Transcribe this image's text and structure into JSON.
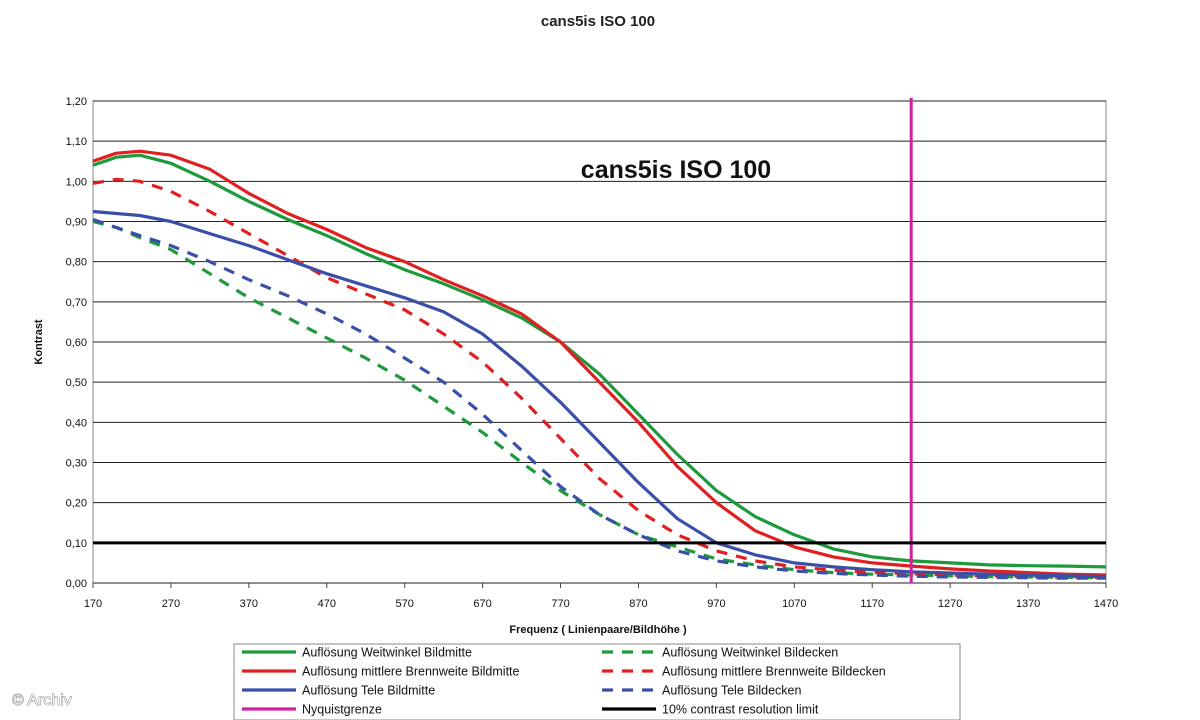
{
  "chart_data": {
    "type": "line",
    "title": "cans5is ISO 100",
    "inner_title": "cans5is ISO 100",
    "xlabel": "Frequenz ( Linienpaare/Bildhöhe )",
    "ylabel": "Kontrast",
    "xlim": [
      170,
      1470
    ],
    "ylim": [
      0,
      1.2
    ],
    "x_ticks": [
      "170",
      "270",
      "370",
      "470",
      "570",
      "670",
      "770",
      "870",
      "970",
      "1070",
      "1170",
      "1270",
      "1370",
      "1470"
    ],
    "y_ticks": [
      "0,00",
      "0,10",
      "0,20",
      "0,30",
      "0,40",
      "0,50",
      "0,60",
      "0,70",
      "0,80",
      "0,90",
      "1,00",
      "1,10",
      "1,20"
    ],
    "grid": true,
    "legend_position": "bottom",
    "series": [
      {
        "name": "Auflösung Weitwinkel Bildmitte",
        "color": "#1e9a3c",
        "dash": false,
        "x": [
          170,
          200,
          230,
          270,
          320,
          370,
          420,
          470,
          520,
          570,
          620,
          670,
          720,
          770,
          820,
          870,
          920,
          970,
          1020,
          1070,
          1120,
          1170,
          1220,
          1270,
          1320,
          1370,
          1420,
          1470
        ],
        "y": [
          1.04,
          1.06,
          1.065,
          1.045,
          1.0,
          0.95,
          0.905,
          0.865,
          0.82,
          0.78,
          0.745,
          0.705,
          0.66,
          0.6,
          0.52,
          0.42,
          0.32,
          0.23,
          0.165,
          0.12,
          0.085,
          0.065,
          0.055,
          0.05,
          0.045,
          0.043,
          0.042,
          0.04
        ]
      },
      {
        "name": "Auflösung Weitwinkel Bildecken",
        "color": "#1e9a3c",
        "dash": true,
        "x": [
          170,
          200,
          230,
          270,
          320,
          370,
          420,
          470,
          520,
          570,
          620,
          670,
          720,
          770,
          820,
          870,
          920,
          970,
          1020,
          1070,
          1120,
          1170,
          1220,
          1270,
          1320,
          1370,
          1420,
          1470
        ],
        "y": [
          0.9,
          0.885,
          0.86,
          0.83,
          0.77,
          0.71,
          0.66,
          0.61,
          0.56,
          0.505,
          0.44,
          0.375,
          0.3,
          0.23,
          0.17,
          0.12,
          0.09,
          0.06,
          0.045,
          0.033,
          0.026,
          0.022,
          0.02,
          0.018,
          0.016,
          0.015,
          0.014,
          0.013
        ]
      },
      {
        "name": "Auflösung mittlere Brennweite Bildmitte",
        "color": "#e02020",
        "dash": false,
        "x": [
          170,
          200,
          230,
          270,
          320,
          370,
          420,
          470,
          520,
          570,
          620,
          670,
          720,
          770,
          820,
          870,
          920,
          970,
          1020,
          1070,
          1120,
          1170,
          1220,
          1270,
          1320,
          1370,
          1420,
          1470
        ],
        "y": [
          1.05,
          1.07,
          1.075,
          1.065,
          1.03,
          0.97,
          0.92,
          0.88,
          0.835,
          0.8,
          0.755,
          0.715,
          0.67,
          0.6,
          0.5,
          0.4,
          0.29,
          0.2,
          0.13,
          0.09,
          0.065,
          0.05,
          0.042,
          0.035,
          0.03,
          0.026,
          0.022,
          0.02
        ]
      },
      {
        "name": "Auflösung mittlere Brennweite Bildecken",
        "color": "#e02020",
        "dash": true,
        "x": [
          170,
          200,
          230,
          270,
          320,
          370,
          420,
          470,
          520,
          570,
          620,
          670,
          720,
          770,
          820,
          870,
          920,
          970,
          1020,
          1070,
          1120,
          1170,
          1220,
          1270,
          1320,
          1370,
          1420,
          1470
        ],
        "y": [
          0.995,
          1.005,
          1.0,
          0.975,
          0.925,
          0.87,
          0.815,
          0.76,
          0.72,
          0.68,
          0.62,
          0.55,
          0.46,
          0.36,
          0.26,
          0.18,
          0.12,
          0.08,
          0.055,
          0.04,
          0.032,
          0.027,
          0.023,
          0.02,
          0.018,
          0.016,
          0.015,
          0.014
        ]
      },
      {
        "name": "Auflösung Tele Bildmitte",
        "color": "#3a4fa8",
        "dash": false,
        "x": [
          170,
          200,
          230,
          270,
          320,
          370,
          420,
          470,
          520,
          570,
          620,
          670,
          720,
          770,
          820,
          870,
          920,
          970,
          1020,
          1070,
          1120,
          1170,
          1220,
          1270,
          1320,
          1370,
          1420,
          1470
        ],
        "y": [
          0.925,
          0.92,
          0.915,
          0.9,
          0.87,
          0.84,
          0.805,
          0.77,
          0.74,
          0.71,
          0.675,
          0.62,
          0.54,
          0.45,
          0.35,
          0.25,
          0.16,
          0.1,
          0.07,
          0.05,
          0.04,
          0.033,
          0.028,
          0.025,
          0.022,
          0.02,
          0.018,
          0.016
        ]
      },
      {
        "name": "Auflösung Tele Bildecken",
        "color": "#3a4fa8",
        "dash": true,
        "x": [
          170,
          200,
          230,
          270,
          320,
          370,
          420,
          470,
          520,
          570,
          620,
          670,
          720,
          770,
          820,
          870,
          920,
          970,
          1020,
          1070,
          1120,
          1170,
          1220,
          1270,
          1320,
          1370,
          1420,
          1470
        ],
        "y": [
          0.905,
          0.885,
          0.865,
          0.84,
          0.8,
          0.755,
          0.715,
          0.67,
          0.62,
          0.56,
          0.5,
          0.42,
          0.33,
          0.24,
          0.17,
          0.12,
          0.08,
          0.055,
          0.04,
          0.03,
          0.024,
          0.02,
          0.017,
          0.015,
          0.014,
          0.013,
          0.012,
          0.012
        ]
      }
    ],
    "reference_lines": [
      {
        "name": "Nyquistgrenze",
        "color": "#d020a0",
        "orientation": "vertical",
        "value": 1220
      },
      {
        "name": "10% contrast resolution limit",
        "color": "#000000",
        "orientation": "horizontal",
        "value": 0.1
      }
    ],
    "legend": {
      "items": [
        {
          "label": "Auflösung Weitwinkel Bildmitte",
          "color": "#1e9a3c",
          "dash": false
        },
        {
          "label": "Auflösung Weitwinkel Bildecken",
          "color": "#1e9a3c",
          "dash": true
        },
        {
          "label": "Auflösung mittlere Brennweite Bildmitte",
          "color": "#e02020",
          "dash": false
        },
        {
          "label": "Auflösung mittlere Brennweite Bildecken",
          "color": "#e02020",
          "dash": true
        },
        {
          "label": "Auflösung Tele Bildmitte",
          "color": "#3a4fa8",
          "dash": false
        },
        {
          "label": "Auflösung Tele Bildecken",
          "color": "#3a4fa8",
          "dash": true
        },
        {
          "label": "Nyquistgrenze",
          "color": "#d020a0",
          "dash": false
        },
        {
          "label": "10% contrast resolution limit",
          "color": "#000000",
          "dash": false
        }
      ]
    }
  },
  "credit": "© Archiv"
}
